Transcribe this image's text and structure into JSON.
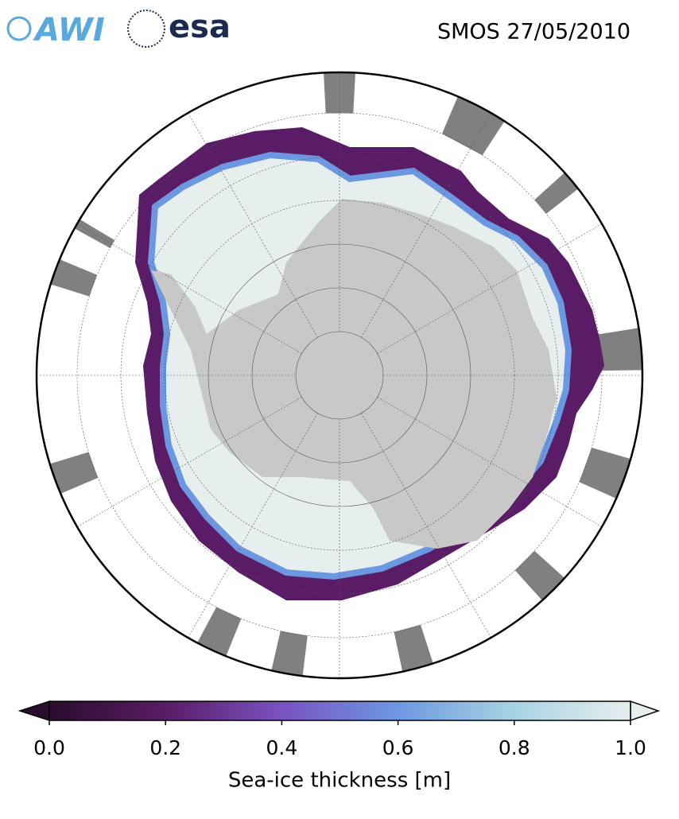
{
  "chart_data": {
    "type": "colorbar_map",
    "title": "SMOS 27/05/2010",
    "logos": [
      "AWI",
      "esa"
    ],
    "colorbar_label": "Sea-ice thickness [m]",
    "clim": [
      0,
      1
    ],
    "ticks": [
      {
        "value": 0,
        "label": "0.0"
      },
      0.2,
      0.4,
      0.6,
      0.8,
      {
        "value": 1,
        "label": "1.0"
      }
    ],
    "colormap": [
      "#2a0c2c",
      "#5a1c66",
      "#7a52c2",
      "#6c98e2",
      "#a8d3e4",
      "#e6eeee"
    ],
    "land_color": "#c8c8c8",
    "missing_color": "#808080"
  }
}
